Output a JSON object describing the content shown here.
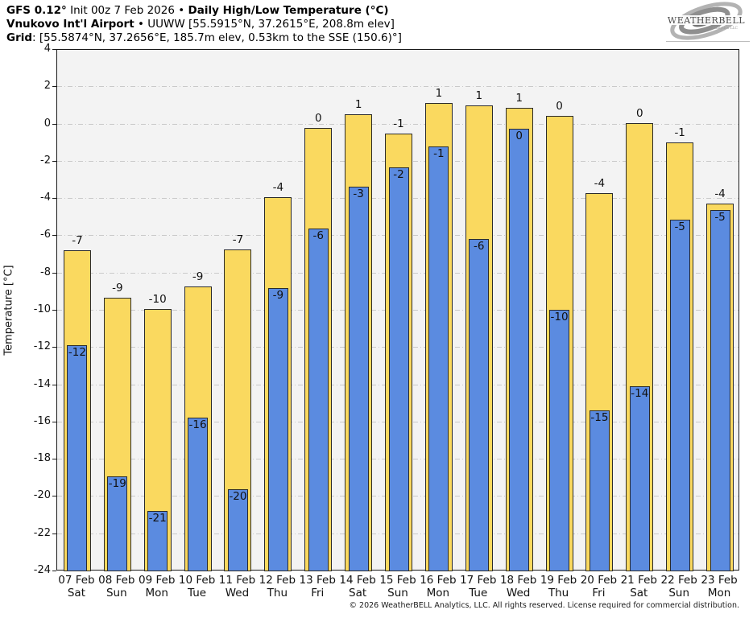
{
  "header": {
    "line1_bold1": "GFS 0.12°",
    "line1_regular": " Init 00z 7 Feb 2026 • ",
    "line1_bold2": "Daily High/Low Temperature (°C)",
    "line2_bold": "Vnukovo Int'l Airport",
    "line2_regular": " • UUWW [55.5915°N, 37.2615°E, 208.8m elev]",
    "line3_bold": "Grid",
    "line3_regular": ": [55.5874°N, 37.2656°E, 185.7m elev, 0.53km to the SSE (150.6)°]"
  },
  "logo": {
    "name": "WEATHERBELL",
    "sub": "Analytics LLC"
  },
  "footer": {
    "copyright": "© 2026 WeatherBELL Analytics, LLC. All rights reserved. License required for commercial distribution."
  },
  "chart_data": {
    "type": "bar",
    "title": "Daily High/Low Temperature (°C)",
    "xlabel": "",
    "ylabel": "Temperature [°C]",
    "ylim": [
      -24,
      4
    ],
    "ytick_step": 2,
    "grid": true,
    "legend_position": "none",
    "categories": [
      "07 Feb",
      "08 Feb",
      "09 Feb",
      "10 Feb",
      "11 Feb",
      "12 Feb",
      "13 Feb",
      "14 Feb",
      "15 Feb",
      "16 Feb",
      "17 Feb",
      "18 Feb",
      "19 Feb",
      "20 Feb",
      "21 Feb",
      "22 Feb",
      "23 Feb"
    ],
    "day_labels": [
      "Sat",
      "Sun",
      "Mon",
      "Tue",
      "Wed",
      "Thu",
      "Fri",
      "Sat",
      "Sun",
      "Mon",
      "Tue",
      "Wed",
      "Thu",
      "Fri",
      "Sat",
      "Sun",
      "Mon"
    ],
    "series": [
      {
        "name": "Daily High",
        "color": "#fad95f",
        "values": [
          -6.75,
          -9.3,
          -9.9,
          -8.7,
          -6.7,
          -3.9,
          -0.2,
          0.55,
          -0.5,
          1.15,
          1.0,
          0.9,
          0.45,
          -3.7,
          0.05,
          -0.95,
          -4.25
        ],
        "labels": [
          "-7",
          "-9",
          "-10",
          "-9",
          "-7",
          "-4",
          "0",
          "1",
          "-1",
          "1",
          "1",
          "1",
          "0",
          "-4",
          "0",
          "-1",
          "-4"
        ]
      },
      {
        "name": "Daily Low",
        "color": "#5b8be0",
        "values": [
          -11.85,
          -18.9,
          -20.75,
          -15.75,
          -19.6,
          -8.8,
          -5.6,
          -3.35,
          -2.3,
          -1.2,
          -6.15,
          -0.25,
          -9.95,
          -15.35,
          -14.05,
          -5.1,
          -4.6
        ],
        "labels": [
          "-12",
          "-19",
          "-21",
          "-16",
          "-20",
          "-9",
          "-6",
          "-3",
          "-2",
          "-1",
          "-6",
          "0",
          "-10",
          "-15",
          "-14",
          "-5",
          "-5"
        ]
      }
    ]
  }
}
